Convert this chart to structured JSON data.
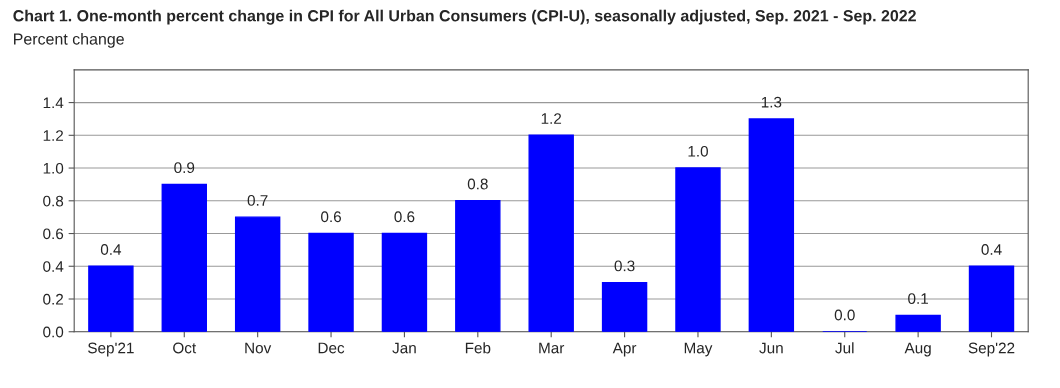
{
  "chart_data": {
    "type": "bar",
    "title": "Chart 1. One-month percent change in CPI for All Urban Consumers (CPI-U), seasonally adjusted, Sep. 2021 - Sep. 2022",
    "subtitle": "Percent change",
    "categories": [
      "Sep'21",
      "Oct",
      "Nov",
      "Dec",
      "Jan",
      "Feb",
      "Mar",
      "Apr",
      "May",
      "Jun",
      "Jul",
      "Aug",
      "Sep'22"
    ],
    "values": [
      0.4,
      0.9,
      0.7,
      0.6,
      0.6,
      0.8,
      1.2,
      0.3,
      1.0,
      1.3,
      0.0,
      0.1,
      0.4
    ],
    "value_labels": [
      "0.4",
      "0.9",
      "0.7",
      "0.6",
      "0.6",
      "0.8",
      "1.2",
      "0.3",
      "1.0",
      "1.3",
      "0.0",
      "0.1",
      "0.4"
    ],
    "color": "#0000ff",
    "ylim": [
      0,
      1.6
    ],
    "yticks": [
      {
        "value": 0,
        "label": "0.0"
      },
      {
        "value": 0.2,
        "label": "0.2"
      },
      {
        "value": 0.4,
        "label": "0.4"
      },
      {
        "value": 0.6,
        "label": "0.6"
      },
      {
        "value": 0.8,
        "label": "0.8"
      },
      {
        "value": 1.0,
        "label": "1.0"
      },
      {
        "value": 1.2,
        "label": "1.2"
      },
      {
        "value": 1.4,
        "label": "1.4"
      }
    ],
    "grid": "y",
    "legend": false
  }
}
